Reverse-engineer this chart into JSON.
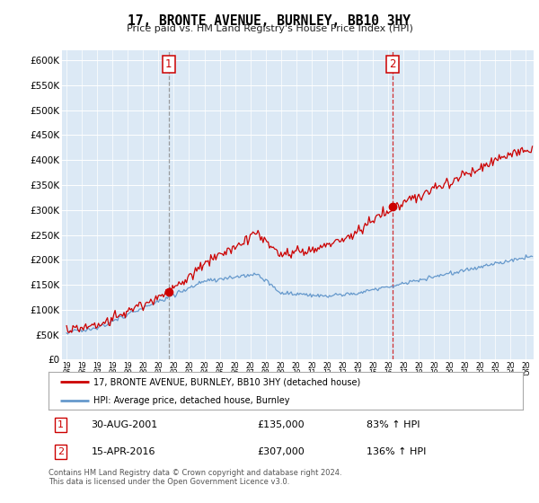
{
  "title": "17, BRONTE AVENUE, BURNLEY, BB10 3HY",
  "subtitle": "Price paid vs. HM Land Registry's House Price Index (HPI)",
  "bg_color": "#dce9f5",
  "line1_color": "#cc0000",
  "line2_color": "#6699cc",
  "ylim": [
    0,
    620000
  ],
  "yticks": [
    0,
    50000,
    100000,
    150000,
    200000,
    250000,
    300000,
    350000,
    400000,
    450000,
    500000,
    550000,
    600000
  ],
  "sale1_date_x": 2001.67,
  "sale1_value": 135000,
  "sale2_date_x": 2016.29,
  "sale2_value": 307000,
  "legend_label1": "17, BRONTE AVENUE, BURNLEY, BB10 3HY (detached house)",
  "legend_label2": "HPI: Average price, detached house, Burnley",
  "annotation1_label": "1",
  "annotation1_date": "30-AUG-2001",
  "annotation1_price": "£135,000",
  "annotation1_hpi": "83% ↑ HPI",
  "annotation2_label": "2",
  "annotation2_date": "15-APR-2016",
  "annotation2_price": "£307,000",
  "annotation2_hpi": "136% ↑ HPI",
  "footnote": "Contains HM Land Registry data © Crown copyright and database right 2024.\nThis data is licensed under the Open Government Licence v3.0.",
  "xmin": 1994.7,
  "xmax": 2025.5,
  "sale1_vline_color": "#888888",
  "sale2_vline_color": "#cc0000"
}
